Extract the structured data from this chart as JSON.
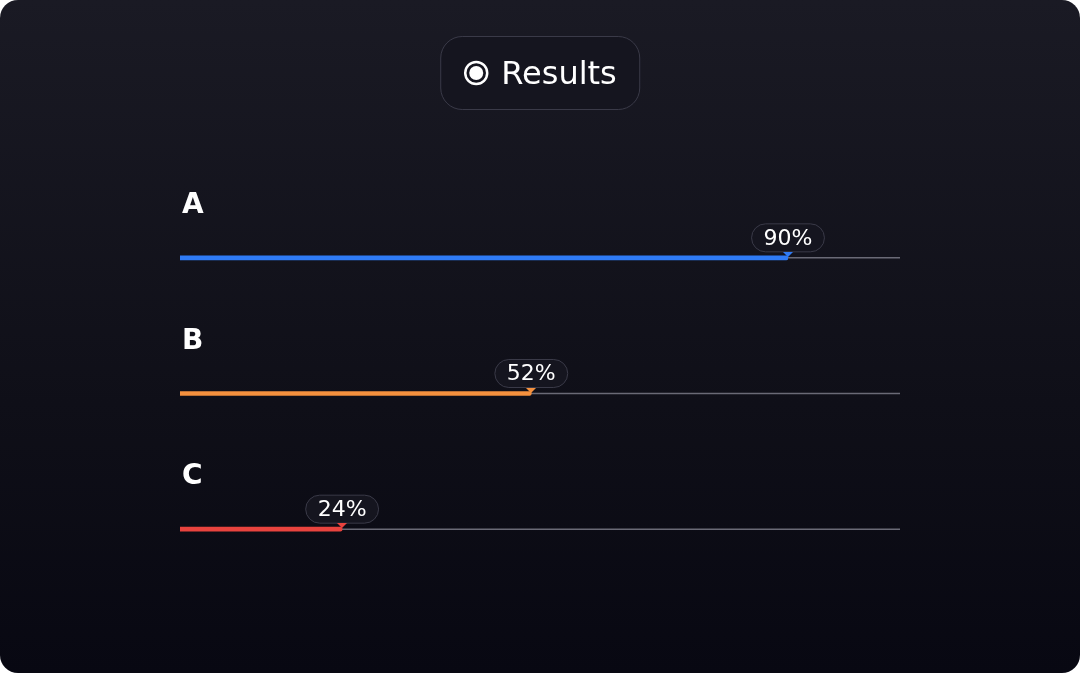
{
  "chart_data": {
    "type": "bar",
    "orientation": "horizontal",
    "title": "Results",
    "categories": [
      "A",
      "B",
      "C"
    ],
    "values": [
      90,
      52,
      24
    ],
    "colors": [
      "#2f7bf5",
      "#f5913e",
      "#e8433e"
    ],
    "value_labels": [
      "90%",
      "52%",
      "24%"
    ],
    "tick_labels": "y"
  }
}
